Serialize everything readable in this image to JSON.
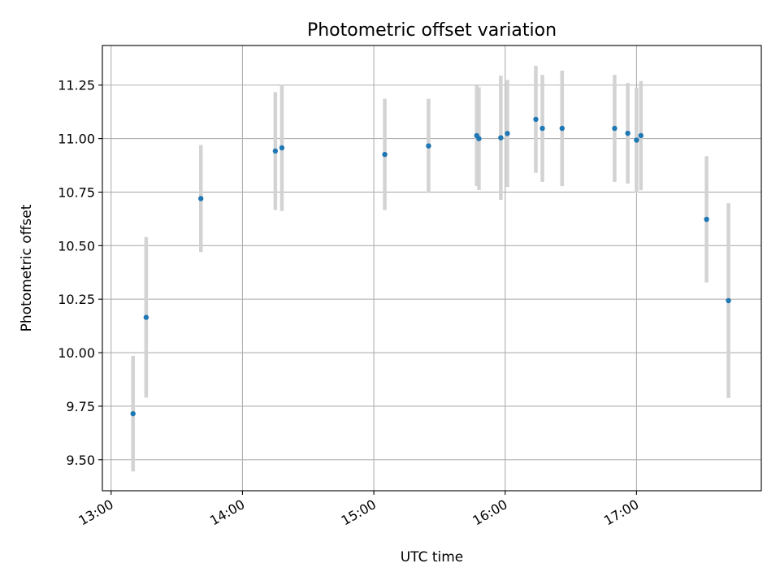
{
  "chart_data": {
    "type": "scatter",
    "title": "Photometric offset variation",
    "xlabel": "UTC time",
    "ylabel": "Photometric offset",
    "x_tick_labels": [
      "13:00",
      "14:00",
      "15:00",
      "16:00",
      "17:00"
    ],
    "y_tick_labels": [
      "9.50",
      "9.75",
      "10.00",
      "10.25",
      "10.50",
      "10.75",
      "11.00",
      "11.25"
    ],
    "grid": true,
    "legend": "none",
    "colors": {
      "point": "#1f77b4",
      "errorbar": "#d3d3d3"
    },
    "series": [
      {
        "errorbars": true,
        "points": [
          {
            "x": "13:10",
            "y": 9.715,
            "err": 0.27
          },
          {
            "x": "13:16",
            "y": 10.165,
            "err": 0.375
          },
          {
            "x": "13:41",
            "y": 10.72,
            "err": 0.25
          },
          {
            "x": "14:15",
            "y": 10.942,
            "err": 0.275
          },
          {
            "x": "14:18",
            "y": 10.957,
            "err": 0.295
          },
          {
            "x": "15:05",
            "y": 10.926,
            "err": 0.26
          },
          {
            "x": "15:25",
            "y": 10.966,
            "err": 0.22
          },
          {
            "x": "15:47",
            "y": 11.014,
            "err": 0.235
          },
          {
            "x": "15:48",
            "y": 11.0,
            "err": 0.24
          },
          {
            "x": "15:58",
            "y": 11.004,
            "err": 0.29
          },
          {
            "x": "16:01",
            "y": 11.024,
            "err": 0.25
          },
          {
            "x": "16:14",
            "y": 11.09,
            "err": 0.25
          },
          {
            "x": "16:17",
            "y": 11.048,
            "err": 0.25
          },
          {
            "x": "16:26",
            "y": 11.048,
            "err": 0.27
          },
          {
            "x": "16:50",
            "y": 11.048,
            "err": 0.25
          },
          {
            "x": "16:56",
            "y": 11.025,
            "err": 0.235
          },
          {
            "x": "17:00",
            "y": 10.993,
            "err": 0.245
          },
          {
            "x": "17:02",
            "y": 11.014,
            "err": 0.255
          },
          {
            "x": "17:32",
            "y": 10.623,
            "err": 0.295
          },
          {
            "x": "17:42",
            "y": 10.243,
            "err": 0.455
          }
        ]
      }
    ]
  }
}
